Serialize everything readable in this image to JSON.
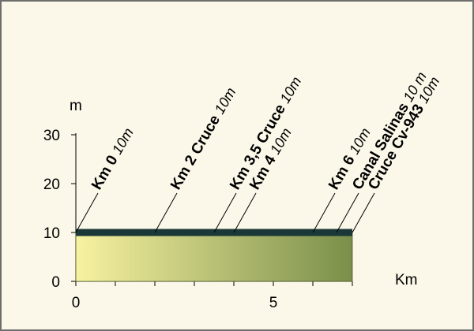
{
  "chart_data": {
    "type": "area",
    "xlabel": "Km",
    "ylabel": "m",
    "xlim": [
      0,
      7
    ],
    "ylim": [
      0,
      30
    ],
    "x_ticks": [
      0,
      5
    ],
    "y_ticks": [
      0,
      10,
      20,
      30
    ],
    "profile": {
      "x": [
        0,
        7
      ],
      "y": [
        10,
        10
      ]
    },
    "checkpoints": [
      {
        "km": 0,
        "name": "Km 0",
        "elevation": "10m"
      },
      {
        "km": 2,
        "name": "Km 2 Cruce",
        "elevation": "10m"
      },
      {
        "km": 3.5,
        "name": "Km 3,5 Cruce",
        "elevation": "10m"
      },
      {
        "km": 4,
        "name": "Km 4",
        "elevation": "10m"
      },
      {
        "km": 6,
        "name": "Km 6",
        "elevation": "10m"
      },
      {
        "km": 6.6,
        "name": "Canal  Salinas",
        "elevation": "10 m"
      },
      {
        "km": 7,
        "name": "Cruce Cv-943",
        "elevation": "10m"
      }
    ],
    "colors": {
      "fill_start": "#f7f2a0",
      "fill_end": "#7a8f4a",
      "profile_line": "#1b3838",
      "background": "#fbf8e9"
    }
  }
}
